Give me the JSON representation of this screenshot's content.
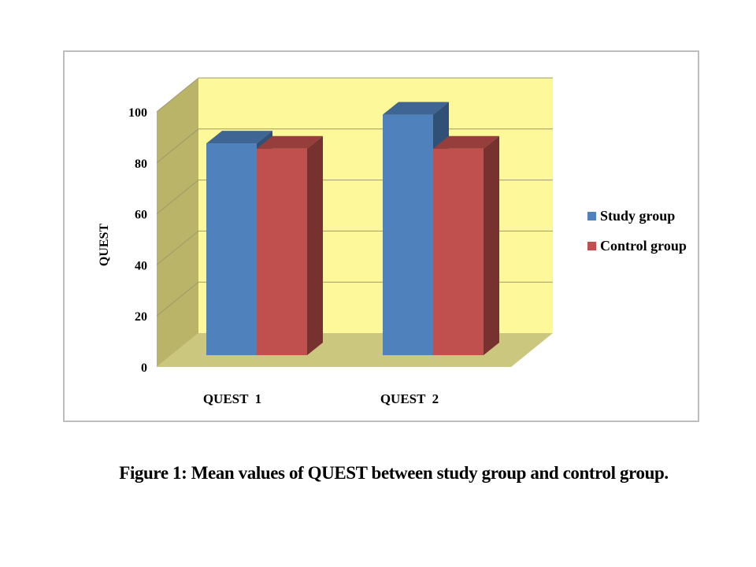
{
  "caption": "Figure 1: Mean values of QUEST between study group and control group.",
  "colors": {
    "wall": "#fdf99a",
    "side_wall": "#bab469",
    "floor": "#ccc77e",
    "gridline": "#9e9a6b",
    "study": "#4f81bd",
    "control": "#c0504d"
  },
  "chart_data": {
    "type": "bar",
    "title": "",
    "xlabel": "",
    "ylabel": "QUEST",
    "ylim": [
      0,
      100
    ],
    "yticks": [
      "0",
      "20",
      "40",
      "60",
      "80",
      "100"
    ],
    "categories": [
      "QUEST  1",
      "QUEST  2"
    ],
    "series": [
      {
        "name": "Study group",
        "values": [
          81,
          92
        ]
      },
      {
        "name": "Control group",
        "values": [
          79,
          79
        ]
      }
    ],
    "grid": true,
    "legend": "right",
    "style": "3d-clustered-column"
  }
}
